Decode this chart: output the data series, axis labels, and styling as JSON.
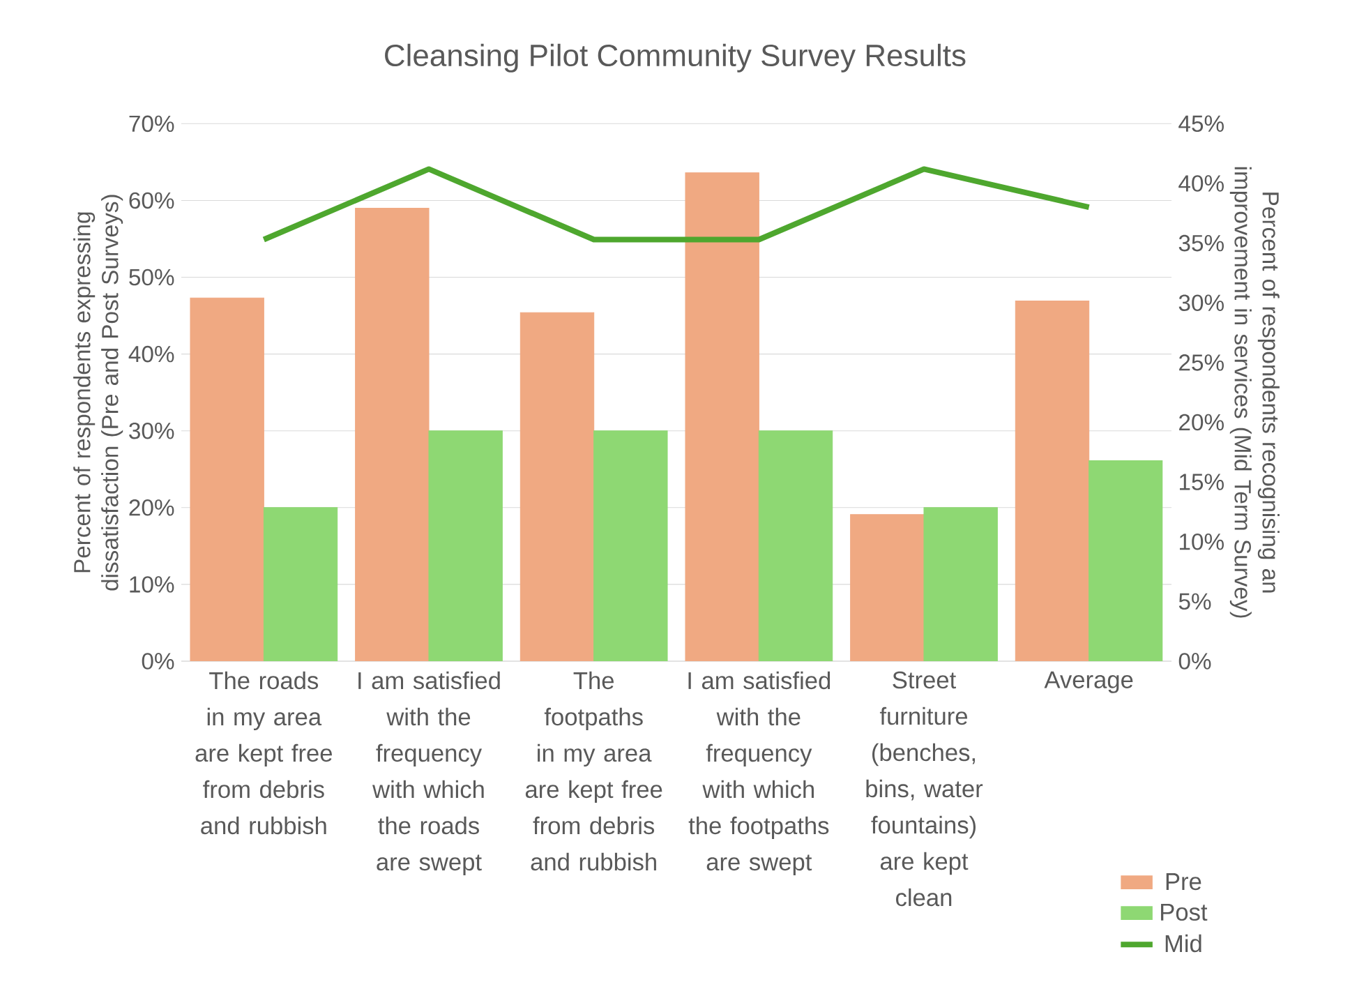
{
  "chart_data": {
    "type": "bar",
    "title": "Cleansing Pilot Community Survey Results",
    "categories": [
      "The roads in my area are kept free from debris and rubbish",
      "I am satisfied with the frequency with which the roads are swept",
      "The footpaths in my area are kept free from debris and rubbish",
      "I am satisfied with the frequency with which the footpaths are swept",
      "Street furniture (benches, bins, water fountains) are kept clean",
      "Average"
    ],
    "ylabel": "Percent of respondents expressing dissatisfaction (Pre and Post Surveys)",
    "y2label": "Percent of respondents recognising an improvement in services (Mid Term Survey)",
    "series": [
      {
        "name": "Pre",
        "color": "#f0a982",
        "values": [
          47.3,
          59,
          45.4,
          63.6,
          19.1,
          46.9
        ]
      },
      {
        "name": "Post",
        "color": "#8ed873",
        "values": [
          20,
          30,
          30,
          30,
          20,
          26.1
        ]
      },
      {
        "name": "Mid",
        "type": "line",
        "axis": "y2",
        "color": "#4ea72e",
        "values": [
          35.3,
          41.2,
          35.3,
          35.3,
          41.2,
          38
        ]
      }
    ],
    "ylim": [
      0,
      70
    ],
    "yticks": [
      {
        "value": 0,
        "label": "0%"
      },
      {
        "value": 10,
        "label": "10%"
      },
      {
        "value": 20,
        "label": "20%"
      },
      {
        "value": 30,
        "label": "30%"
      },
      {
        "value": 40,
        "label": "40%"
      },
      {
        "value": 50,
        "label": "50%"
      },
      {
        "value": 60,
        "label": "60%"
      },
      {
        "value": 70,
        "label": "70%"
      }
    ],
    "y2lim": [
      0,
      45
    ],
    "y2ticks": [
      {
        "value": 0,
        "label": "0%"
      },
      {
        "value": 5,
        "label": "5%"
      },
      {
        "value": 10,
        "label": "10%"
      },
      {
        "value": 15,
        "label": "15%"
      },
      {
        "value": 20,
        "label": "20%"
      },
      {
        "value": 25,
        "label": "25%"
      },
      {
        "value": 30,
        "label": "30%"
      },
      {
        "value": 35,
        "label": "35%"
      },
      {
        "value": 40,
        "label": "40%"
      },
      {
        "value": 45,
        "label": "45%"
      }
    ],
    "grid": "y",
    "legend": "bottom right",
    "marker": "none",
    "line_style": "solid"
  }
}
